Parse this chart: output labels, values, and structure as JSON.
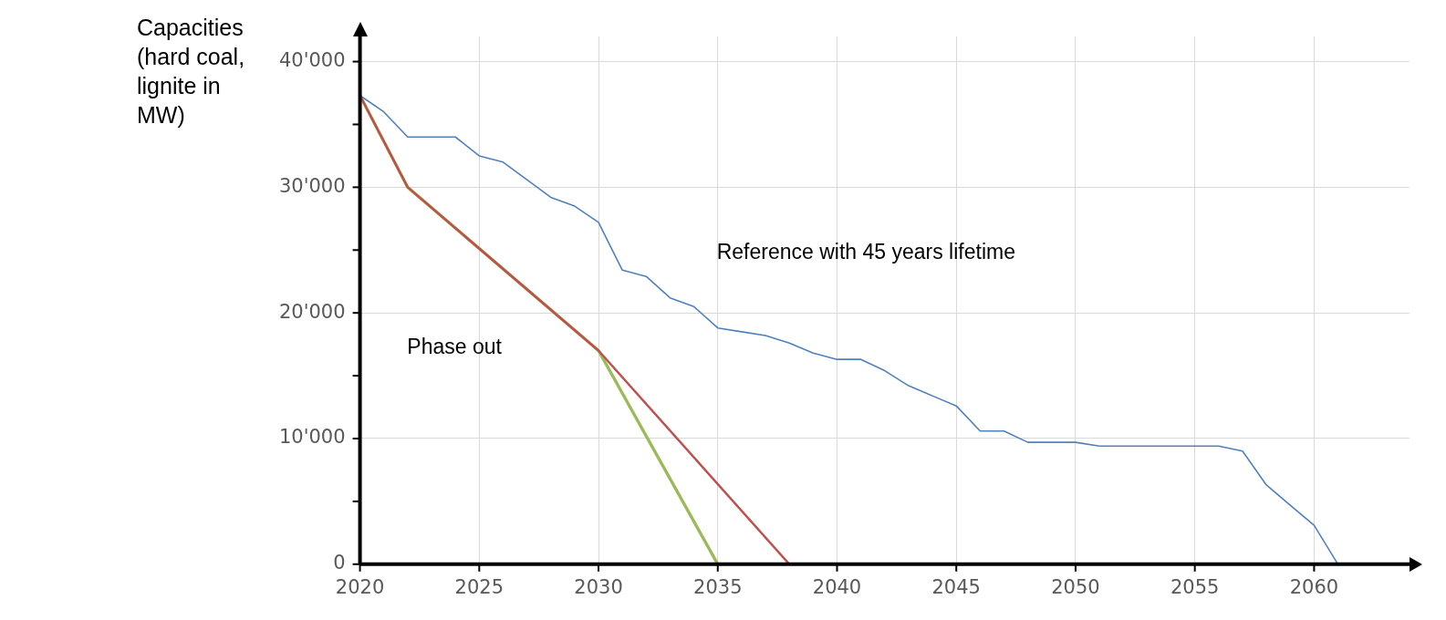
{
  "chart_data": {
    "type": "line",
    "ylabel": "Capacities (hard coal, lignite in MW)",
    "xlim": [
      2020,
      2064
    ],
    "xticks": [
      2020,
      2025,
      2030,
      2035,
      2040,
      2045,
      2050,
      2055,
      2060
    ],
    "ylim": [
      0,
      42000
    ],
    "yticks": [
      {
        "value": 0,
        "label": "0"
      },
      {
        "value": 5000,
        "label": null
      },
      {
        "value": 10000,
        "label": "10'000"
      },
      {
        "value": 15000,
        "label": null
      },
      {
        "value": 20000,
        "label": "20'000"
      },
      {
        "value": 25000,
        "label": null
      },
      {
        "value": 30000,
        "label": "30'000"
      },
      {
        "value": 35000,
        "label": null
      },
      {
        "value": 40000,
        "label": "40'000"
      }
    ],
    "grid": true,
    "legend": false,
    "marker": "none",
    "line_style": "solid",
    "series": [
      {
        "color": "#4f81bd",
        "x": [
          2020,
          2021,
          2022,
          2023,
          2024,
          2025,
          2026,
          2027,
          2028,
          2029,
          2030,
          2031,
          2032,
          2033,
          2034,
          2035,
          2036,
          2037,
          2038,
          2039,
          2040,
          2041,
          2042,
          2043,
          2044,
          2045,
          2046,
          2047,
          2048,
          2049,
          2050,
          2051,
          2052,
          2053,
          2054,
          2055,
          2056,
          2057,
          2058,
          2059,
          2060,
          2061,
          2062,
          2063
        ],
        "values": [
          37300,
          36000,
          34000,
          34000,
          34000,
          32500,
          32000,
          30600,
          29200,
          28500,
          27200,
          23400,
          22900,
          21200,
          20500,
          18800,
          18500,
          18200,
          17600,
          16800,
          16300,
          16300,
          15400,
          14200,
          13400,
          12600,
          10600,
          10600,
          9700,
          9700,
          9700,
          9400,
          9400,
          9400,
          9400,
          9400,
          9400,
          9000,
          6300,
          4700,
          3100,
          0,
          0,
          0
        ]
      },
      {
        "color": "#c0504d",
        "x": [
          2020,
          2022,
          2030,
          2038
        ],
        "values": [
          37300,
          30000,
          17000,
          0
        ]
      },
      {
        "color": "#9bbb59",
        "x": [
          2020,
          2022,
          2030,
          2035
        ],
        "values": [
          37300,
          30000,
          17000,
          0
        ]
      }
    ],
    "annotations": [
      "Reference with 45 years lifetime",
      "Phase out"
    ]
  }
}
